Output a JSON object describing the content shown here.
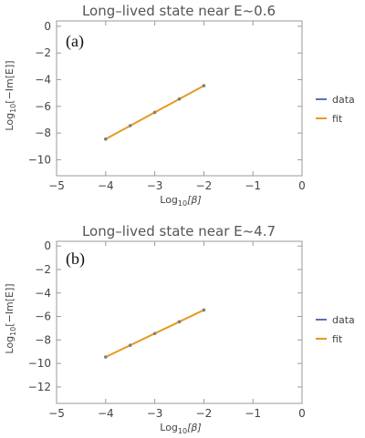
{
  "chart_data": [
    {
      "type": "line",
      "panel_label": "(a)",
      "title": "Long–lived state near E~0.6",
      "xlabel": {
        "base": "Log",
        "sub": "10",
        "arg": "[β]"
      },
      "ylabel": {
        "base": "Log",
        "sub": "10",
        "arg": "[−Im[E]]"
      },
      "xlim": [
        -5,
        0
      ],
      "ylim": [
        -11.2,
        0.4
      ],
      "xticks": [
        -5,
        -4,
        -3,
        -2,
        -1,
        0
      ],
      "xtick_labels": [
        "−5",
        "−4",
        "−3",
        "−2",
        "−1",
        "0"
      ],
      "yticks": [
        0,
        -2,
        -4,
        -6,
        -8,
        -10
      ],
      "ytick_labels": [
        "0",
        "−2",
        "−4",
        "−6",
        "−8",
        "−10"
      ],
      "grid": false,
      "legend_position": "right",
      "series": [
        {
          "name": "data",
          "color": "#5b6fb8",
          "style": "points",
          "x": [
            -4,
            -3.5,
            -3,
            -2.5,
            -2
          ],
          "y": [
            -8.45,
            -7.45,
            -6.45,
            -5.45,
            -4.45
          ]
        },
        {
          "name": "fit",
          "color": "#e69a1f",
          "style": "line",
          "x": [
            -4,
            -2
          ],
          "y": [
            -8.45,
            -4.45
          ]
        }
      ]
    },
    {
      "type": "line",
      "panel_label": "(b)",
      "title": "Long–lived state near E~4.7",
      "xlabel": {
        "base": "Log",
        "sub": "10",
        "arg": "[β]"
      },
      "ylabel": {
        "base": "Log",
        "sub": "10",
        "arg": "[−Im[E]]"
      },
      "xlim": [
        -5,
        0
      ],
      "ylim": [
        -13.4,
        0.4
      ],
      "xticks": [
        -5,
        -4,
        -3,
        -2,
        -1,
        0
      ],
      "xtick_labels": [
        "−5",
        "−4",
        "−3",
        "−2",
        "−1",
        "0"
      ],
      "yticks": [
        0,
        -2,
        -4,
        -6,
        -8,
        -10,
        -12
      ],
      "ytick_labels": [
        "0",
        "−2",
        "−4",
        "−6",
        "−8",
        "−10",
        "−12"
      ],
      "grid": false,
      "legend_position": "right",
      "series": [
        {
          "name": "data",
          "color": "#5b6fb8",
          "style": "points",
          "x": [
            -4,
            -3.5,
            -3,
            -2.5,
            -2
          ],
          "y": [
            -9.45,
            -8.45,
            -7.45,
            -6.45,
            -5.45
          ]
        },
        {
          "name": "fit",
          "color": "#e69a1f",
          "style": "line",
          "x": [
            -4,
            -2
          ],
          "y": [
            -9.45,
            -5.45
          ]
        }
      ]
    }
  ]
}
